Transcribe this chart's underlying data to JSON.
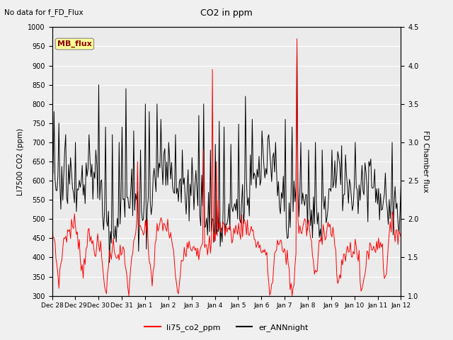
{
  "title": "CO2 in ppm",
  "subtitle": "No data for f_FD_Flux",
  "ylabel_left": "LI7500 CO2 (ppm)",
  "ylabel_right": "FD Chamber flux",
  "ylim_left": [
    300,
    1000
  ],
  "ylim_right": [
    1.0,
    4.5
  ],
  "yticks_left": [
    300,
    350,
    400,
    450,
    500,
    550,
    600,
    650,
    700,
    750,
    800,
    850,
    900,
    950,
    1000
  ],
  "yticks_right": [
    1.0,
    1.5,
    2.0,
    2.5,
    3.0,
    3.5,
    4.0,
    4.5
  ],
  "legend_labels": [
    "li75_co2_ppm",
    "er_ANNnight"
  ],
  "legend_colors": [
    "red",
    "black"
  ],
  "mb_flux_label": "MB_flux",
  "tick_labels": [
    "Dec 28",
    "Dec 29",
    "Dec 30",
    "Dec 31",
    "Jan 1",
    "Jan 2",
    "Jan 3",
    "Jan 4",
    "Jan 5",
    "Jan 6",
    "Jan 7",
    "Jan 8",
    "Jan 9",
    "Jan 10",
    "Jan 11",
    "Jan 12"
  ],
  "fig_width": 6.4,
  "fig_height": 4.8,
  "dpi": 100
}
